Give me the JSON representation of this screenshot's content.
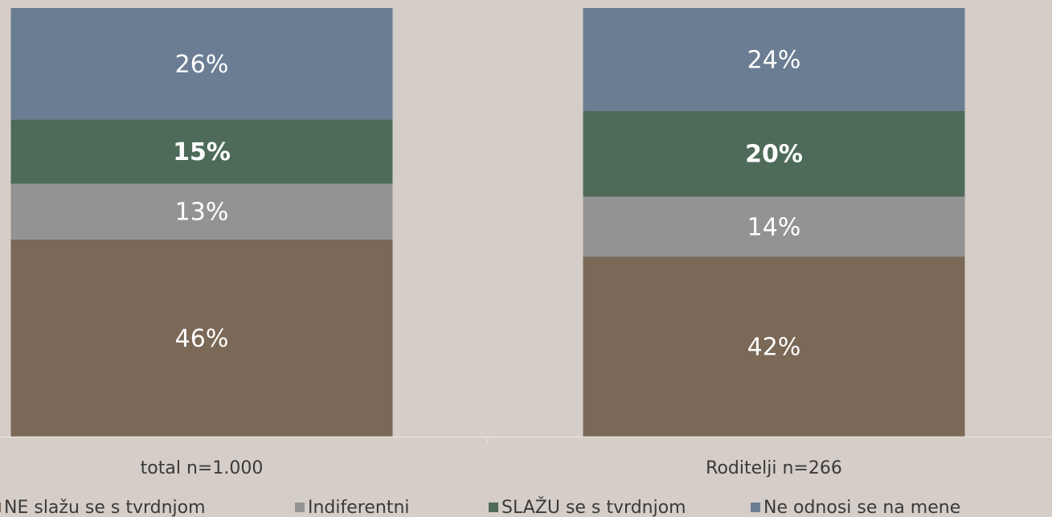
{
  "chart_data": {
    "type": "stacked_bar",
    "categories": [
      "total n=1.000",
      "Roditelji n=266"
    ],
    "series": [
      {
        "name": "NE slažu se s tvrdnjom",
        "color": "#7b6856",
        "values": [
          46,
          42
        ],
        "value_labels": [
          "46%",
          "42%"
        ]
      },
      {
        "name": "Indiferentni",
        "color": "#939393",
        "values": [
          13,
          14
        ],
        "value_labels": [
          "13%",
          "14%"
        ]
      },
      {
        "name": "SLAŽU se s tvrdnjom",
        "color": "#4e6b5a",
        "values": [
          15,
          20
        ],
        "value_labels": [
          "15%",
          "20%"
        ],
        "label_bold": true
      },
      {
        "name": "Ne odnosi se na mene",
        "color": "#6a7d93",
        "values": [
          26,
          24
        ],
        "value_labels": [
          "26%",
          "24%"
        ]
      }
    ],
    "ylim": [
      0,
      100
    ],
    "legend": "bottom"
  }
}
